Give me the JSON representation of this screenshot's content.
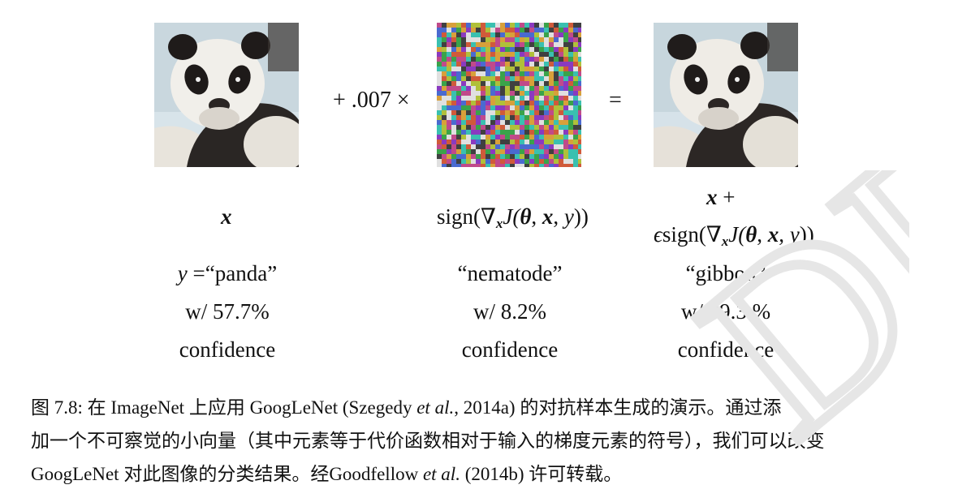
{
  "figure": {
    "images": [
      {
        "name": "panda original image"
      },
      {
        "name": "adversarial noise image"
      },
      {
        "name": "panda adversarial image"
      }
    ],
    "operator_plus": "+ .007 ×",
    "operator_equals": "=",
    "math_labels": {
      "x": "x",
      "noise_prefix": "sign(∇",
      "noise_sub": "x",
      "noise_j": "J(",
      "noise_theta": "θ",
      "noise_sep1": ", ",
      "noise_x": "x",
      "noise_sep2": ", ",
      "noise_y": "y",
      "noise_suffix": "))",
      "adv_line1_x": "x",
      "adv_line1_plus": " +",
      "adv_eps": "ϵ",
      "adv_prefix": "sign(∇",
      "adv_sub": "x",
      "adv_j": "J(",
      "adv_theta": "θ",
      "adv_sep1": ", ",
      "adv_x": "x",
      "adv_sep2": ", ",
      "adv_y": "y",
      "adv_suffix": "))"
    },
    "predictions": [
      {
        "y_var": "y",
        "eq": " =",
        "label": "“panda”",
        "confidence": "w/ 57.7%",
        "word": "confidence"
      },
      {
        "label": "“nematode”",
        "confidence": "w/ 8.2%",
        "word": "confidence"
      },
      {
        "label": "“gibbon”",
        "confidence": "w/ 99.3 %",
        "word": "confidence"
      }
    ]
  },
  "caption": {
    "prefix": "图 7.8: 在 ImageNet 上应用 GoogLeNet (Szegedy ",
    "etal1": "et al.",
    "mid1": ", 2014a) 的对抗样本生成的演示。通过添",
    "line2": "加一个不可察觉的小向量（其中元素等于代价函数相对于输入的梯度元素的符号），我们可以改变",
    "line3_prefix": "GoogLeNet 对此图像的分类结果。经Goodfellow ",
    "etal2": "et al.",
    "line3_suffix": " (2014b) 许可转载。"
  },
  "watermark": {
    "text": "DFT"
  }
}
